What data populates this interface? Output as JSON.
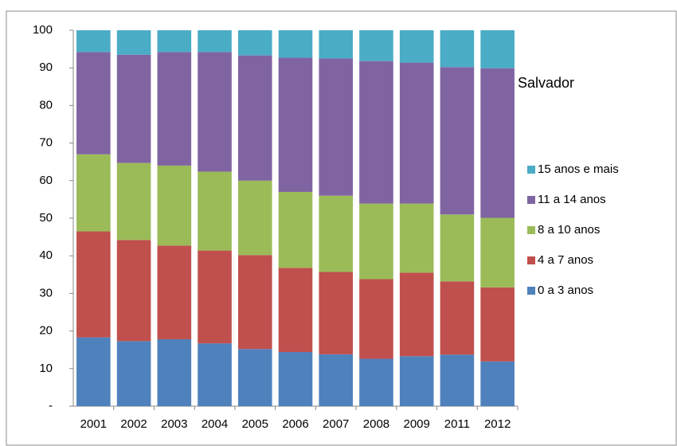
{
  "chart_data": {
    "type": "stacked_bar",
    "annotation": "Salvador",
    "categories": [
      "2001",
      "2002",
      "2003",
      "2004",
      "2005",
      "2006",
      "2007",
      "2008",
      "2009",
      "2011",
      "2012"
    ],
    "series": [
      {
        "name": "0 a 3 anos",
        "color": "#4f81bd",
        "values": [
          18.3,
          17.3,
          17.8,
          16.7,
          15.2,
          14.4,
          13.8,
          12.6,
          13.3,
          13.7,
          11.9
        ]
      },
      {
        "name": "4 a 7 anos",
        "color": "#c0504d",
        "values": [
          28.2,
          26.9,
          24.9,
          24.7,
          25.0,
          22.4,
          21.9,
          21.2,
          22.2,
          19.5,
          19.7
        ]
      },
      {
        "name": "8 a 10 anos",
        "color": "#9bbb59",
        "values": [
          20.5,
          20.5,
          21.3,
          21.0,
          19.8,
          20.2,
          20.3,
          20.1,
          18.4,
          17.8,
          18.5
        ]
      },
      {
        "name": "11 a 14 anos",
        "color": "#8064a2",
        "values": [
          27.2,
          28.8,
          30.2,
          31.8,
          33.3,
          35.7,
          36.5,
          37.9,
          37.5,
          39.2,
          39.8
        ]
      },
      {
        "name": "15 anos e mais",
        "color": "#4bacc6",
        "values": [
          5.8,
          6.5,
          5.8,
          5.8,
          6.7,
          7.3,
          7.5,
          8.2,
          8.6,
          9.8,
          10.1
        ]
      }
    ],
    "ylim": [
      0,
      100
    ],
    "yticks": [
      {
        "value": 0,
        "label": "-"
      },
      10,
      20,
      30,
      40,
      50,
      60,
      70,
      80,
      90,
      100
    ],
    "legend": "right"
  }
}
